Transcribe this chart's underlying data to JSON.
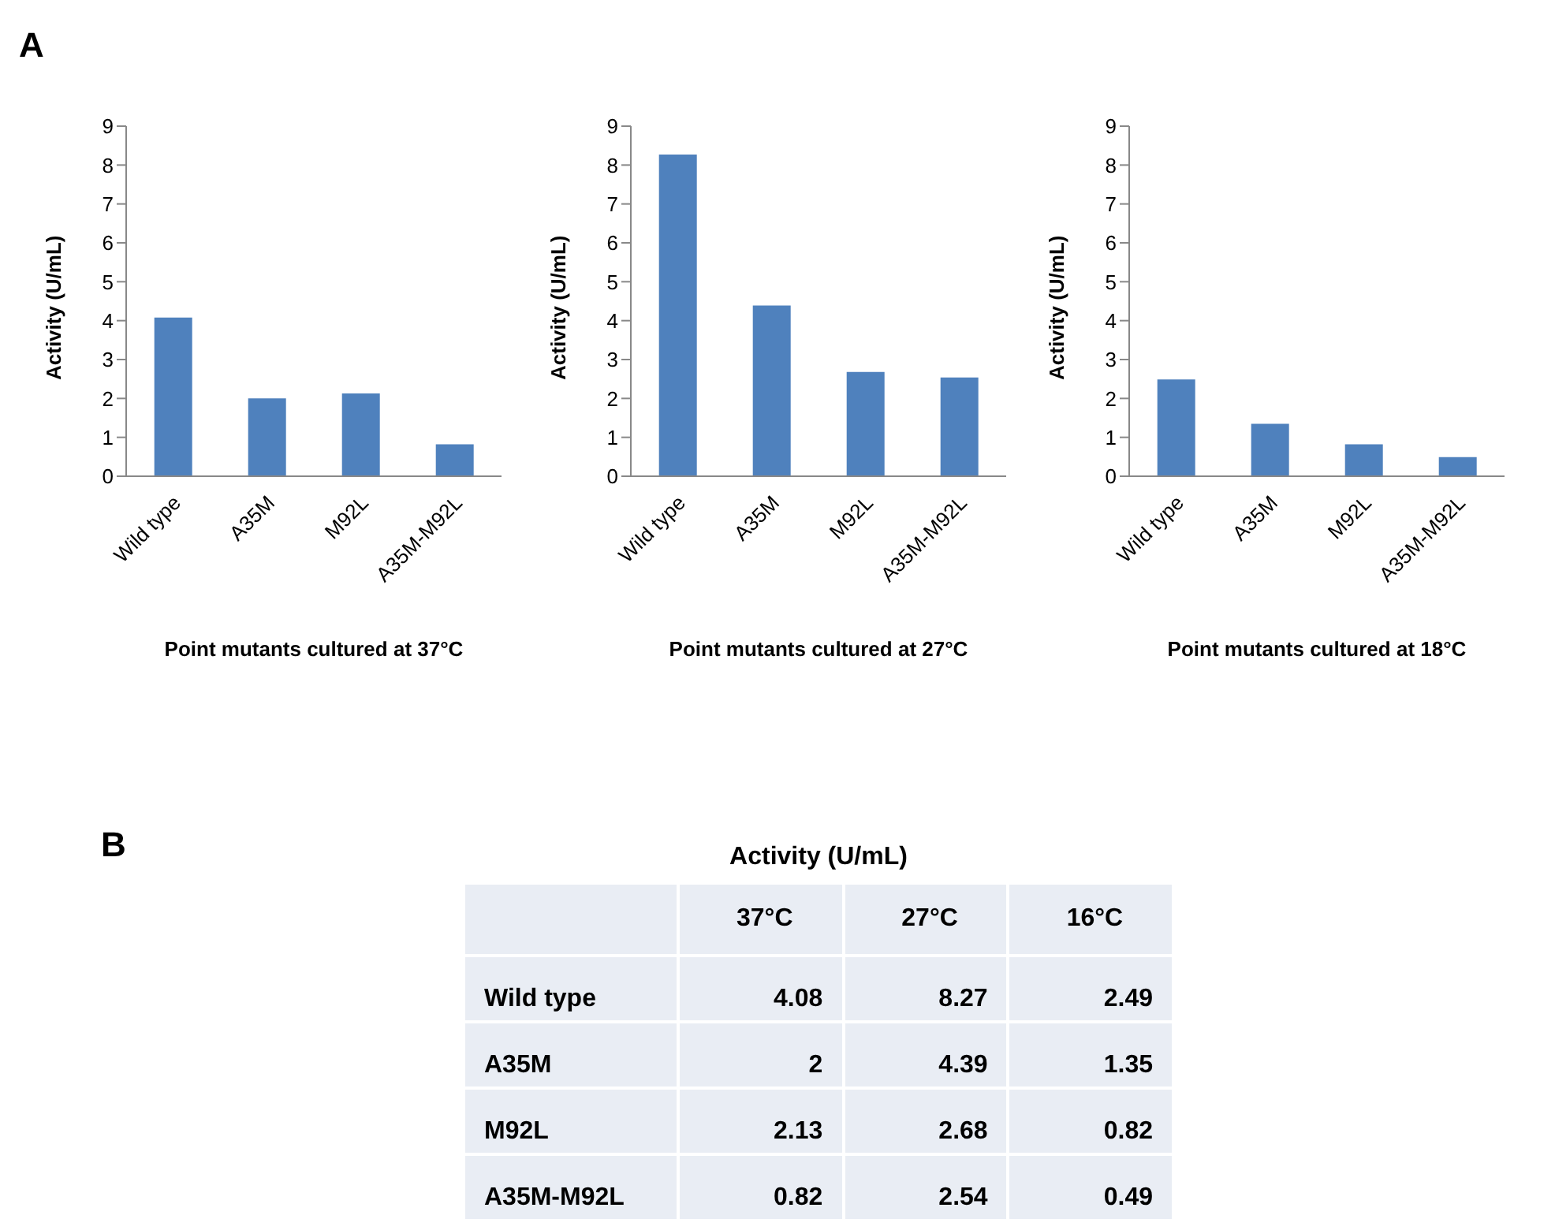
{
  "chart_data": [
    {
      "type": "bar",
      "xlabel": "Point mutants cultured at 37°C",
      "ylabel": "Activity (U/mL)",
      "categories": [
        "Wild type",
        "A35M",
        "M92L",
        "A35M-M92L"
      ],
      "values": [
        4.08,
        2,
        2.13,
        0.82
      ],
      "color": "#4f81bd",
      "ylim": [
        0,
        9
      ],
      "yticks": [
        0,
        1,
        2,
        3,
        4,
        5,
        6,
        7,
        8,
        9
      ],
      "annotations": [
        "A"
      ]
    },
    {
      "type": "bar",
      "xlabel": "Point mutants cultured at 27°C",
      "ylabel": "Activity (U/mL)",
      "categories": [
        "Wild type",
        "A35M",
        "M92L",
        "A35M-M92L"
      ],
      "values": [
        8.27,
        4.39,
        2.68,
        2.54
      ],
      "color": "#4f81bd",
      "ylim": [
        0,
        9
      ],
      "yticks": [
        0,
        1,
        2,
        3,
        4,
        5,
        6,
        7,
        8,
        9
      ]
    },
    {
      "type": "bar",
      "xlabel": "Point mutants cultured at 18°C",
      "ylabel": "Activity (U/mL)",
      "categories": [
        "Wild type",
        "A35M",
        "M92L",
        "A35M-M92L"
      ],
      "values": [
        2.49,
        1.35,
        0.82,
        0.49
      ],
      "color": "#4f81bd",
      "ylim": [
        0,
        9
      ],
      "yticks": [
        0,
        1,
        2,
        3,
        4,
        5,
        6,
        7,
        8,
        9
      ]
    },
    {
      "type": "other",
      "title": "Activity (U/mL)",
      "categories": [
        "37°C",
        "27°C",
        "16°C"
      ],
      "y_categories": [
        "Wild type",
        "A35M",
        "M92L",
        "A35M-M92L"
      ],
      "cell_labels": [
        [
          "4.08",
          "8.27",
          "2.49"
        ],
        [
          "2",
          "4.39",
          "1.35"
        ],
        [
          "2.13",
          "2.68",
          "0.82"
        ],
        [
          "0.82",
          "2.54",
          "0.49"
        ]
      ],
      "annotations": [
        "B"
      ]
    }
  ]
}
